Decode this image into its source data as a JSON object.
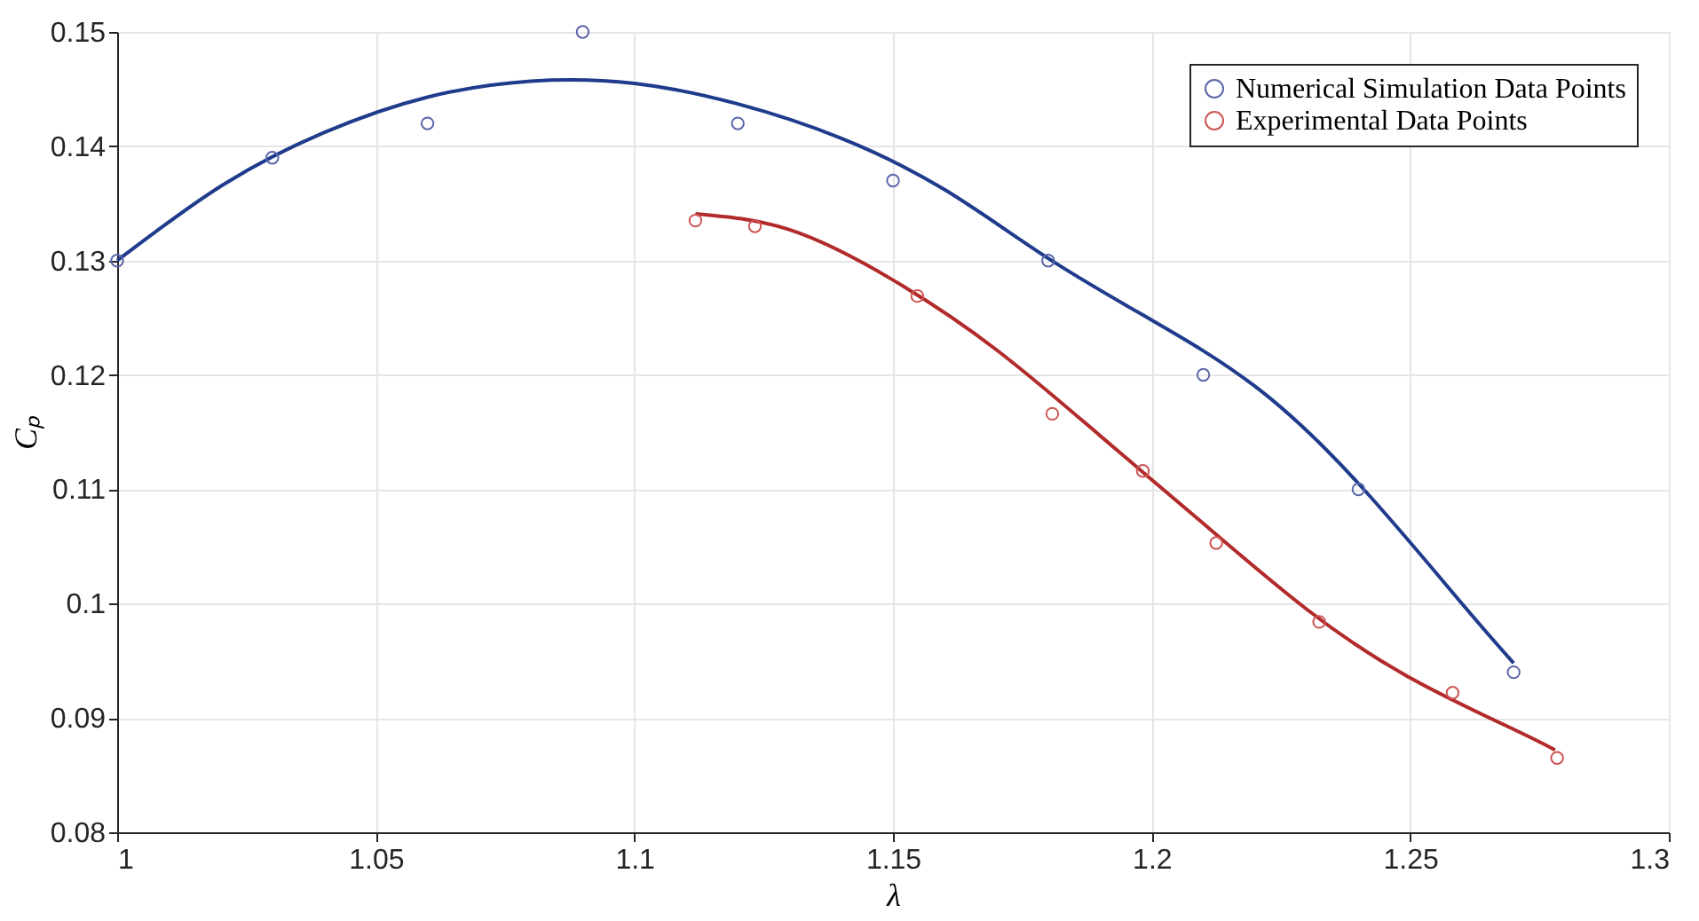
{
  "chart_data": {
    "type": "scatter",
    "xlabel": "λ",
    "ylabel": "Cₚ",
    "xlim": [
      1,
      1.3
    ],
    "xticks": [
      1,
      1.05,
      1.1,
      1.15,
      1.2,
      1.25,
      1.3
    ],
    "ylim": [
      0.08,
      0.15
    ],
    "yticks": [
      0.08,
      0.09,
      0.1,
      0.11,
      0.12,
      0.13,
      0.14,
      0.15
    ],
    "grid": true,
    "legend": "top right",
    "marker": "circle",
    "series": [
      {
        "type": "line",
        "marker": "none",
        "color": "#1f3b8c",
        "x": [
          1.0,
          1.02,
          1.04,
          1.06,
          1.08,
          1.1,
          1.12,
          1.14,
          1.16,
          1.18,
          1.2,
          1.22,
          1.24,
          1.26,
          1.27
        ],
        "values": [
          0.13,
          0.1365,
          0.1412,
          0.1443,
          0.1457,
          0.1455,
          0.1437,
          0.1407,
          0.1362,
          0.1302,
          0.1248,
          0.119,
          0.1105,
          0.1,
          0.0948
        ]
      },
      {
        "type": "line",
        "marker": "none",
        "color": "#b22a2a",
        "x": [
          1.1118,
          1.13,
          1.15,
          1.17,
          1.19,
          1.21,
          1.23,
          1.25,
          1.27,
          1.278
        ],
        "values": [
          0.1341,
          0.1327,
          0.1283,
          0.1222,
          0.1147,
          0.107,
          0.0995,
          0.0935,
          0.089,
          0.0872
        ]
      },
      {
        "name": "Numerical Simulation Data Points",
        "color": "#5a66aa",
        "x": [
          1.0,
          1.03,
          1.06,
          1.09,
          1.12,
          1.15,
          1.18,
          1.21,
          1.24,
          1.27
        ],
        "values": [
          0.13,
          0.139,
          0.142,
          0.15,
          0.142,
          0.137,
          0.13,
          0.12,
          0.11,
          0.094
        ]
      },
      {
        "name": "Experimental Data Points",
        "color": "#cc5555",
        "x": [
          1.1118,
          1.1233,
          1.1547,
          1.1808,
          1.1983,
          1.2125,
          1.2324,
          1.2582,
          1.2784
        ],
        "values": [
          0.1335,
          0.133,
          0.1269,
          0.1166,
          0.1116,
          0.1053,
          0.0984,
          0.0922,
          0.0865
        ]
      }
    ]
  }
}
